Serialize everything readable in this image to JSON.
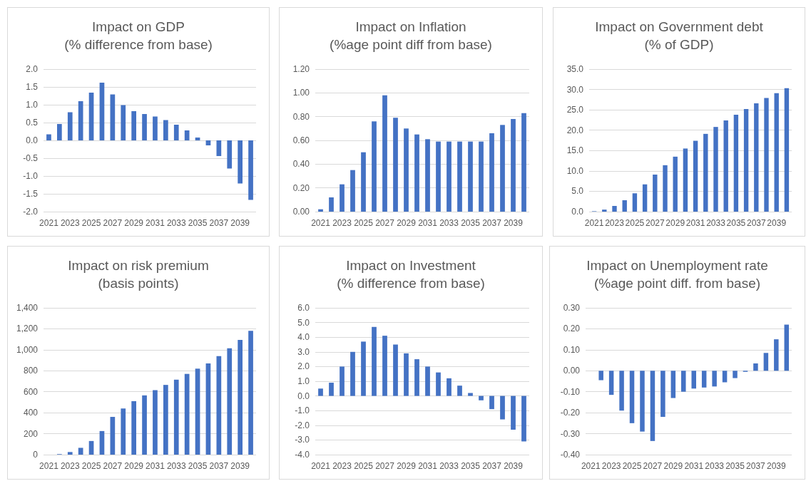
{
  "chart_data": [
    {
      "type": "bar",
      "title": "Impact on GDP",
      "subtitle": "(% difference from base)",
      "categories": [
        "2021",
        null,
        "2023",
        null,
        "2025",
        null,
        "2027",
        null,
        "2029",
        null,
        "2031",
        null,
        "2033",
        null,
        "2035",
        null,
        "2037",
        null,
        "2039",
        null
      ],
      "values": [
        0.17,
        0.46,
        0.79,
        1.1,
        1.34,
        1.62,
        1.29,
        0.99,
        0.82,
        0.74,
        0.67,
        0.57,
        0.44,
        0.28,
        0.08,
        -0.14,
        -0.44,
        -0.79,
        -1.21,
        -1.67
      ],
      "color": "#4472c4",
      "ylim": [
        -2,
        2
      ],
      "yticks": [
        {
          "value": -2,
          "label": "-2.0"
        },
        {
          "value": -1.5,
          "label": "-1.5"
        },
        {
          "value": -1,
          "label": "-1.0"
        },
        {
          "value": -0.5,
          "label": "-0.5"
        },
        {
          "value": 0,
          "label": "0.0"
        },
        {
          "value": 0.5,
          "label": "0.5"
        },
        {
          "value": 1,
          "label": "1.0"
        },
        {
          "value": 1.5,
          "label": "1.5"
        },
        {
          "value": 2,
          "label": "2.0"
        }
      ],
      "grid": "y"
    },
    {
      "type": "bar",
      "title": "Impact on Inflation",
      "subtitle": "(%age point diff from base)",
      "categories": [
        "2021",
        null,
        "2023",
        null,
        "2025",
        null,
        "2027",
        null,
        "2029",
        null,
        "2031",
        null,
        "2033",
        null,
        "2035",
        null,
        "2037",
        null,
        "2039",
        null
      ],
      "values": [
        0.02,
        0.12,
        0.23,
        0.35,
        0.5,
        0.76,
        0.98,
        0.79,
        0.7,
        0.65,
        0.61,
        0.59,
        0.59,
        0.59,
        0.59,
        0.59,
        0.66,
        0.73,
        0.78,
        0.83
      ],
      "color": "#4472c4",
      "ylim": [
        0,
        1.2
      ],
      "yticks": [
        {
          "value": 0,
          "label": "0.00"
        },
        {
          "value": 0.2,
          "label": "0.20"
        },
        {
          "value": 0.4,
          "label": "0.40"
        },
        {
          "value": 0.6,
          "label": "0.60"
        },
        {
          "value": 0.8,
          "label": "0.80"
        },
        {
          "value": 1,
          "label": "1.00"
        },
        {
          "value": 1.2,
          "label": "1.20"
        }
      ],
      "grid": "y"
    },
    {
      "type": "bar",
      "title": "Impact on Government debt",
      "subtitle": "(% of GDP)",
      "categories": [
        "2021",
        null,
        "2023",
        null,
        "2025",
        null,
        "2027",
        null,
        "2029",
        null,
        "2031",
        null,
        "2033",
        null,
        "2035",
        null,
        "2037",
        null,
        "2039",
        null
      ],
      "values": [
        0.1,
        0.5,
        1.4,
        2.8,
        4.5,
        6.7,
        9.1,
        11.4,
        13.5,
        15.5,
        17.4,
        19.1,
        20.8,
        22.4,
        23.8,
        25.2,
        26.6,
        27.9,
        29.1,
        30.3
      ],
      "color": "#4472c4",
      "ylim": [
        0,
        35
      ],
      "yticks": [
        {
          "value": 0,
          "label": "0.0"
        },
        {
          "value": 5,
          "label": "5.0"
        },
        {
          "value": 10,
          "label": "10.0"
        },
        {
          "value": 15,
          "label": "15.0"
        },
        {
          "value": 20,
          "label": "20.0"
        },
        {
          "value": 25,
          "label": "25.0"
        },
        {
          "value": 30,
          "label": "30.0"
        },
        {
          "value": 35,
          "label": "35.0"
        }
      ],
      "grid": "y"
    },
    {
      "type": "bar",
      "title": "Impact on risk premium",
      "subtitle": "(basis points)",
      "categories": [
        "2021",
        null,
        "2023",
        null,
        "2025",
        null,
        "2027",
        null,
        "2029",
        null,
        "2031",
        null,
        "2033",
        null,
        "2035",
        null,
        "2037",
        null,
        "2039",
        null
      ],
      "values": [
        0,
        5,
        25,
        65,
        130,
        225,
        360,
        440,
        510,
        565,
        615,
        665,
        715,
        770,
        820,
        870,
        940,
        1015,
        1095,
        1180
      ],
      "color": "#4472c4",
      "ylim": [
        0,
        1400
      ],
      "yticks": [
        0,
        200,
        400,
        600,
        800,
        {
          "value": 1000,
          "label": "1,000"
        },
        {
          "value": 1200,
          "label": "1,200"
        },
        {
          "value": 1400,
          "label": "1,400"
        }
      ],
      "grid": "y"
    },
    {
      "type": "bar",
      "title": "Impact on Investment",
      "subtitle": "(% difference from base)",
      "categories": [
        "2021",
        null,
        "2023",
        null,
        "2025",
        null,
        "2027",
        null,
        "2029",
        null,
        "2031",
        null,
        "2033",
        null,
        "2035",
        null,
        "2037",
        null,
        "2039",
        null
      ],
      "values": [
        0.5,
        0.9,
        2.0,
        3.0,
        3.7,
        4.7,
        4.1,
        3.5,
        2.9,
        2.5,
        2.0,
        1.6,
        1.2,
        0.7,
        0.2,
        -0.3,
        -0.9,
        -1.6,
        -2.3,
        -3.1
      ],
      "color": "#4472c4",
      "ylim": [
        -4,
        6
      ],
      "yticks": [
        {
          "value": -4,
          "label": "-4.0"
        },
        {
          "value": -3,
          "label": "-3.0"
        },
        {
          "value": -2,
          "label": "-2.0"
        },
        {
          "value": -1,
          "label": "-1.0"
        },
        {
          "value": 0,
          "label": "0.0"
        },
        {
          "value": 1,
          "label": "1.0"
        },
        {
          "value": 2,
          "label": "2.0"
        },
        {
          "value": 3,
          "label": "3.0"
        },
        {
          "value": 4,
          "label": "4.0"
        },
        {
          "value": 5,
          "label": "5.0"
        },
        {
          "value": 6,
          "label": "6.0"
        }
      ],
      "grid": "y"
    },
    {
      "type": "bar",
      "title": "Impact on Unemployment rate",
      "subtitle": "(%age point diff. from base)",
      "categories": [
        "2021",
        null,
        "2023",
        null,
        "2025",
        null,
        "2027",
        null,
        "2029",
        null,
        "2031",
        null,
        "2033",
        null,
        "2035",
        null,
        "2037",
        null,
        "2039",
        null
      ],
      "values": [
        0.0,
        -0.045,
        -0.115,
        -0.19,
        -0.25,
        -0.29,
        -0.335,
        -0.22,
        -0.13,
        -0.1,
        -0.085,
        -0.08,
        -0.075,
        -0.055,
        -0.035,
        -0.005,
        0.035,
        0.085,
        0.15,
        0.22
      ],
      "color": "#4472c4",
      "ylim": [
        -0.4,
        0.3
      ],
      "yticks": [
        {
          "value": -0.4,
          "label": "-0.40"
        },
        {
          "value": -0.3,
          "label": "-0.30"
        },
        {
          "value": -0.2,
          "label": "-0.20"
        },
        {
          "value": -0.1,
          "label": "-0.10"
        },
        {
          "value": 0,
          "label": "0.00"
        },
        {
          "value": 0.1,
          "label": "0.10"
        },
        {
          "value": 0.2,
          "label": "0.20"
        },
        {
          "value": 0.3,
          "label": "0.30"
        }
      ],
      "grid": "y"
    }
  ]
}
